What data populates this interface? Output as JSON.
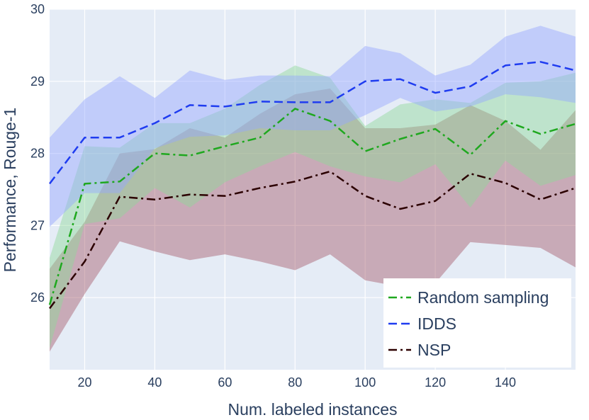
{
  "chart_data": {
    "type": "line",
    "title": "",
    "xlabel": "Num. labeled instances",
    "ylabel": "Performance, Rouge-1",
    "xlim": [
      10,
      160
    ],
    "ylim": [
      25.0,
      30.0
    ],
    "xticks": [
      20,
      40,
      60,
      80,
      100,
      120,
      140
    ],
    "xtick_labels": [
      "20",
      "40",
      "60",
      "80",
      "100",
      "120",
      "140"
    ],
    "yticks": [
      26,
      27,
      28,
      29,
      30
    ],
    "ytick_labels": [
      "26",
      "27",
      "28",
      "29",
      "30"
    ],
    "grid": true,
    "legend_position": "bottom-right",
    "x": [
      10,
      20,
      30,
      40,
      50,
      60,
      70,
      80,
      90,
      100,
      110,
      120,
      130,
      140,
      150,
      160
    ],
    "series": [
      {
        "name": "NSP",
        "color": "#2b0000",
        "band_color": "#a55a6a",
        "dash": "dashdot",
        "values": [
          25.85,
          26.5,
          27.4,
          27.36,
          27.43,
          27.41,
          27.52,
          27.61,
          27.75,
          27.41,
          27.23,
          27.34,
          27.72,
          27.59,
          27.36,
          27.52
        ],
        "lower": [
          25.25,
          26.05,
          26.78,
          26.64,
          26.52,
          26.6,
          26.5,
          26.38,
          26.6,
          26.24,
          26.15,
          26.2,
          26.77,
          26.73,
          26.69,
          26.42
        ],
        "upper": [
          26.4,
          27.05,
          28.0,
          28.06,
          28.35,
          28.22,
          28.55,
          28.82,
          28.9,
          28.35,
          28.35,
          28.4,
          28.67,
          28.45,
          28.05,
          28.6
        ]
      },
      {
        "name": "Random sampling",
        "color": "#1fa81f",
        "band_color": "#8fd99a",
        "dash": "dashdot",
        "values": [
          25.9,
          27.58,
          27.61,
          28.0,
          27.97,
          28.1,
          28.22,
          28.62,
          28.45,
          28.03,
          28.2,
          28.34,
          27.98,
          28.45,
          28.27,
          28.41
        ],
        "lower": [
          25.3,
          27.02,
          27.1,
          27.52,
          27.25,
          27.6,
          27.82,
          28.02,
          27.82,
          27.68,
          27.6,
          27.85,
          27.25,
          27.9,
          27.55,
          27.7
        ],
        "upper": [
          26.55,
          28.1,
          28.08,
          28.42,
          28.42,
          28.62,
          28.95,
          29.22,
          29.05,
          28.38,
          28.68,
          28.75,
          28.7,
          28.98,
          29.0,
          29.12
        ]
      },
      {
        "name": "IDDS",
        "color": "#1f3cf0",
        "band_color": "#94a6ff",
        "dash": "dash",
        "values": [
          27.58,
          28.22,
          28.22,
          28.42,
          28.67,
          28.65,
          28.72,
          28.71,
          28.71,
          29.0,
          29.03,
          28.84,
          28.93,
          29.22,
          29.27,
          29.15
        ],
        "lower": [
          26.98,
          27.45,
          27.45,
          28.07,
          28.23,
          28.25,
          28.35,
          28.32,
          28.32,
          28.53,
          28.77,
          28.58,
          28.65,
          28.82,
          28.78,
          28.7
        ],
        "upper": [
          28.22,
          28.75,
          29.07,
          28.77,
          29.15,
          29.02,
          29.08,
          29.08,
          29.07,
          29.49,
          29.39,
          29.08,
          29.23,
          29.62,
          29.77,
          29.62
        ]
      }
    ],
    "legend_entries": [
      {
        "name": "Random sampling",
        "color": "#1fa81f",
        "dash": "dashdot"
      },
      {
        "name": "IDDS",
        "color": "#1f3cf0",
        "dash": "dash"
      },
      {
        "name": "NSP",
        "color": "#2b0000",
        "dash": "dashdot"
      }
    ]
  }
}
